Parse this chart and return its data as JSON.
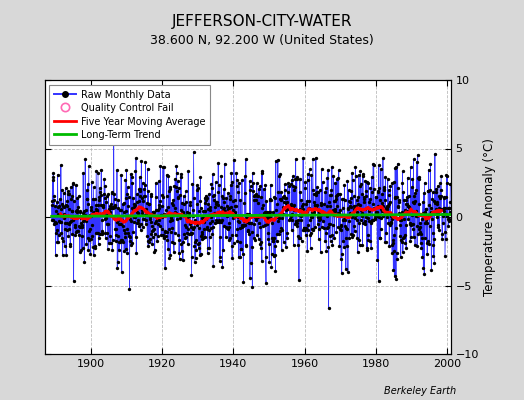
{
  "title": "JEFFERSON-CITY-WATER",
  "subtitle": "38.600 N, 92.200 W (United States)",
  "ylabel_right": "Temperature Anomaly (°C)",
  "credit": "Berkeley Earth",
  "x_start": 1888,
  "x_end": 2001,
  "xlim_left": 1887,
  "xlim_right": 2001,
  "y_min": -10,
  "y_max": 10,
  "yticks": [
    -10,
    -5,
    0,
    5,
    10
  ],
  "xticks": [
    1900,
    1920,
    1940,
    1960,
    1980,
    2000
  ],
  "bg_color": "#d8d8d8",
  "plot_bg_color": "#ffffff",
  "raw_line_color": "#3333ff",
  "raw_dot_color": "#000000",
  "moving_avg_color": "#ff0000",
  "trend_color": "#00bb00",
  "qc_fail_color": "#ff69b4",
  "seed": 42,
  "n_months": 1344,
  "data_start_year": 1889.0,
  "moving_avg_window": 60,
  "title_fontsize": 11,
  "subtitle_fontsize": 9,
  "tick_labelsize": 8,
  "legend_fontsize": 7,
  "credit_fontsize": 7
}
